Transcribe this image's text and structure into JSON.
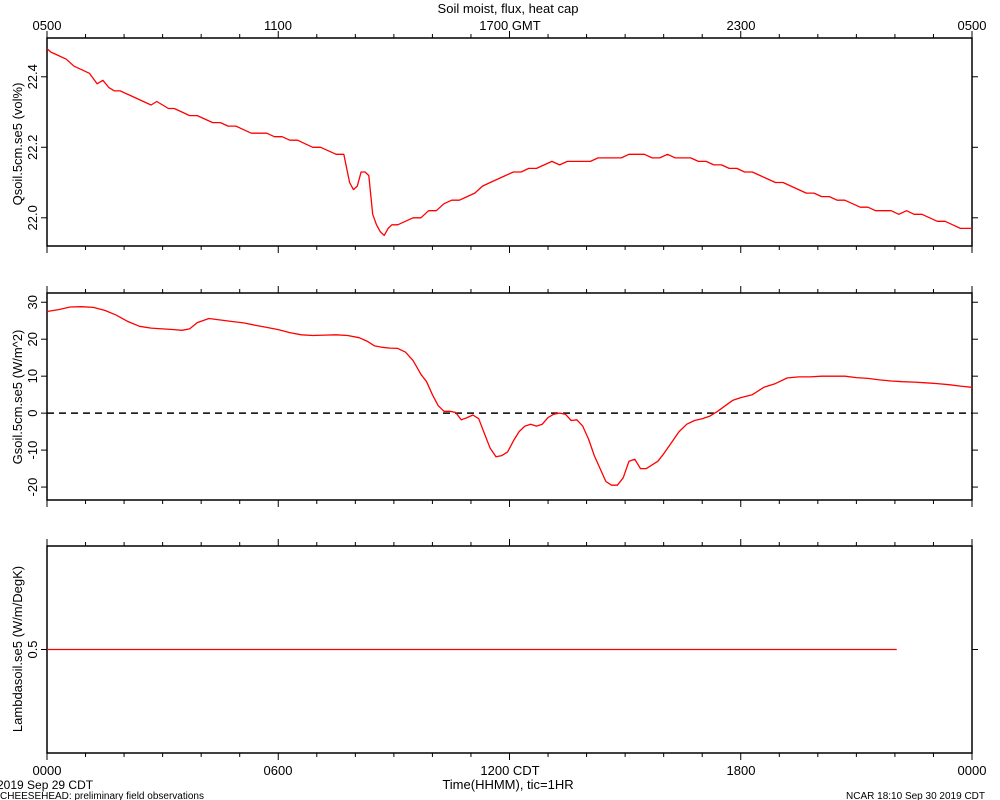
{
  "chart_data": [
    {
      "type": "line",
      "title": "Soil moist, flux, heat cap",
      "top_axis_ticks": [
        "0500",
        "1100",
        "1700 GMT",
        "2300",
        "0500"
      ],
      "ylabel": "Qsoil.5cm.se5 (vol%)",
      "ylim": [
        21.92,
        22.51
      ],
      "yticks": [
        "22.0",
        "22.2",
        "22.4"
      ],
      "yticks_values": [
        22.0,
        22.2,
        22.4
      ],
      "xlim_hours": [
        0,
        24
      ],
      "series": [
        {
          "color": "#ff0000",
          "x": [
            0.0,
            0.1,
            0.3,
            0.5,
            0.7,
            0.9,
            1.1,
            1.3,
            1.45,
            1.6,
            1.75,
            1.9,
            2.1,
            2.3,
            2.5,
            2.7,
            2.85,
            3.0,
            3.15,
            3.3,
            3.5,
            3.7,
            3.9,
            4.1,
            4.3,
            4.5,
            4.7,
            4.9,
            5.1,
            5.3,
            5.5,
            5.7,
            5.9,
            6.1,
            6.3,
            6.5,
            6.7,
            6.9,
            7.1,
            7.3,
            7.5,
            7.7,
            7.85,
            7.95,
            8.05,
            8.15,
            8.25,
            8.35,
            8.45,
            8.55,
            8.65,
            8.75,
            8.85,
            8.95,
            9.1,
            9.3,
            9.5,
            9.7,
            9.9,
            10.1,
            10.3,
            10.5,
            10.7,
            10.9,
            11.1,
            11.3,
            11.5,
            11.7,
            11.9,
            12.1,
            12.3,
            12.5,
            12.7,
            12.9,
            13.1,
            13.3,
            13.5,
            13.7,
            13.9,
            14.1,
            14.3,
            14.5,
            14.7,
            14.9,
            15.1,
            15.3,
            15.5,
            15.7,
            15.9,
            16.1,
            16.3,
            16.5,
            16.7,
            16.9,
            17.1,
            17.3,
            17.5,
            17.7,
            17.9,
            18.1,
            18.3,
            18.5,
            18.7,
            18.9,
            19.1,
            19.3,
            19.5,
            19.7,
            19.9,
            20.1,
            20.3,
            20.5,
            20.7,
            20.9,
            21.1,
            21.3,
            21.5,
            21.7,
            21.9,
            22.1,
            22.3,
            22.5,
            22.7,
            22.9,
            23.1,
            23.3,
            23.5,
            23.7,
            23.9,
            24.0
          ],
          "y": [
            22.48,
            22.47,
            22.46,
            22.45,
            22.43,
            22.42,
            22.41,
            22.38,
            22.39,
            22.37,
            22.36,
            22.36,
            22.35,
            22.34,
            22.33,
            22.32,
            22.33,
            22.32,
            22.31,
            22.31,
            22.3,
            22.29,
            22.29,
            22.28,
            22.27,
            22.27,
            22.26,
            22.26,
            22.25,
            22.24,
            22.24,
            22.24,
            22.23,
            22.23,
            22.22,
            22.22,
            22.21,
            22.2,
            22.2,
            22.19,
            22.18,
            22.18,
            22.1,
            22.08,
            22.09,
            22.13,
            22.13,
            22.12,
            22.01,
            21.98,
            21.96,
            21.95,
            21.97,
            21.98,
            21.98,
            21.99,
            22.0,
            22.0,
            22.02,
            22.02,
            22.04,
            22.05,
            22.05,
            22.06,
            22.07,
            22.09,
            22.1,
            22.11,
            22.12,
            22.13,
            22.13,
            22.14,
            22.14,
            22.15,
            22.16,
            22.15,
            22.16,
            22.16,
            22.16,
            22.16,
            22.17,
            22.17,
            22.17,
            22.17,
            22.18,
            22.18,
            22.18,
            22.17,
            22.17,
            22.18,
            22.17,
            22.17,
            22.17,
            22.16,
            22.16,
            22.15,
            22.15,
            22.14,
            22.14,
            22.13,
            22.13,
            22.12,
            22.11,
            22.1,
            22.1,
            22.09,
            22.08,
            22.07,
            22.07,
            22.06,
            22.06,
            22.05,
            22.05,
            22.04,
            22.03,
            22.03,
            22.02,
            22.02,
            22.02,
            22.01,
            22.02,
            22.01,
            22.01,
            22.0,
            21.99,
            21.99,
            21.98,
            21.97,
            21.97,
            21.97
          ]
        }
      ]
    },
    {
      "type": "line",
      "ylabel": "Gsoil.5cm.se5 (W/m^2)",
      "ylim": [
        -23.5,
        32.5
      ],
      "yticks": [
        "-20",
        "-10",
        "0",
        "10",
        "20",
        "30"
      ],
      "yticks_values": [
        -20,
        -10,
        0,
        10,
        20,
        30
      ],
      "zero_line": true,
      "xlim_hours": [
        0,
        24
      ],
      "series": [
        {
          "color": "#ff0000",
          "x": [
            0.0,
            0.3,
            0.6,
            0.9,
            1.2,
            1.5,
            1.8,
            2.1,
            2.4,
            2.7,
            3.0,
            3.3,
            3.5,
            3.7,
            3.9,
            4.2,
            4.5,
            4.8,
            5.1,
            5.4,
            5.7,
            6.0,
            6.3,
            6.6,
            6.9,
            7.2,
            7.5,
            7.8,
            8.1,
            8.3,
            8.5,
            8.7,
            8.9,
            9.1,
            9.3,
            9.5,
            9.7,
            9.85,
            10.0,
            10.15,
            10.3,
            10.45,
            10.6,
            10.75,
            10.9,
            11.05,
            11.2,
            11.35,
            11.5,
            11.65,
            11.8,
            11.95,
            12.1,
            12.25,
            12.4,
            12.55,
            12.7,
            12.85,
            13.0,
            13.15,
            13.3,
            13.45,
            13.6,
            13.75,
            13.9,
            14.05,
            14.2,
            14.35,
            14.5,
            14.65,
            14.8,
            14.95,
            15.1,
            15.25,
            15.4,
            15.55,
            15.7,
            15.85,
            16.0,
            16.2,
            16.4,
            16.6,
            16.8,
            17.0,
            17.2,
            17.4,
            17.6,
            17.8,
            18.0,
            18.3,
            18.6,
            18.9,
            19.2,
            19.5,
            19.8,
            20.1,
            20.4,
            20.7,
            21.0,
            21.3,
            21.6,
            21.9,
            22.2,
            22.5,
            22.8,
            23.1,
            23.4,
            23.7,
            24.0
          ],
          "y": [
            27.5,
            28.0,
            28.7,
            28.8,
            28.6,
            27.8,
            26.5,
            24.8,
            23.5,
            23.0,
            22.8,
            22.6,
            22.4,
            22.8,
            24.5,
            25.6,
            25.2,
            24.8,
            24.4,
            23.8,
            23.2,
            22.6,
            21.8,
            21.2,
            21.0,
            21.1,
            21.2,
            21.0,
            20.4,
            19.5,
            18.2,
            17.8,
            17.6,
            17.5,
            16.5,
            14.2,
            10.5,
            8.5,
            5.0,
            2.0,
            0.5,
            0.5,
            0.2,
            -1.8,
            -1.2,
            -0.5,
            -1.5,
            -5.5,
            -9.5,
            -11.8,
            -11.5,
            -10.5,
            -7.5,
            -5.0,
            -3.5,
            -3.0,
            -3.5,
            -3.0,
            -1.2,
            -0.3,
            0.0,
            -0.3,
            -2.0,
            -1.8,
            -3.5,
            -7.0,
            -11.5,
            -15.0,
            -18.5,
            -19.5,
            -19.5,
            -17.5,
            -13.0,
            -12.5,
            -15.0,
            -15.0,
            -14.0,
            -13.0,
            -11.0,
            -8.0,
            -5.0,
            -3.0,
            -2.0,
            -1.5,
            -0.8,
            0.5,
            2.0,
            3.5,
            4.2,
            5.0,
            7.0,
            8.0,
            9.5,
            9.8,
            9.8,
            10.0,
            10.0,
            10.0,
            9.6,
            9.4,
            9.0,
            8.7,
            8.5,
            8.4,
            8.2,
            8.0,
            7.7,
            7.3,
            7.0
          ]
        }
      ]
    },
    {
      "type": "line",
      "ylabel": "Lambdasoil.se5 (W/m/DegK)",
      "ylim": [
        0.0,
        1.0
      ],
      "yticks": [
        "0.5"
      ],
      "yticks_values": [
        0.5
      ],
      "xlim_hours": [
        0,
        24
      ],
      "series": [
        {
          "color": "#ff0000",
          "x": [
            0.0,
            22.05
          ],
          "y": [
            0.5,
            0.5
          ]
        }
      ]
    }
  ],
  "bottom_axis": {
    "ticks": [
      "0000",
      "0600",
      "1200 CDT",
      "1800",
      "0000"
    ],
    "xlabel": "Time(HHMM), tic=1HR"
  },
  "footer": {
    "date_left": "2019 Sep 29 CDT",
    "project": "CHEESEHEAD: preliminary field observations",
    "credit": "NCAR 18:10 Sep 30 2019 CDT"
  },
  "colors": {
    "data_line": "#ff0000",
    "axes": "#000000"
  }
}
